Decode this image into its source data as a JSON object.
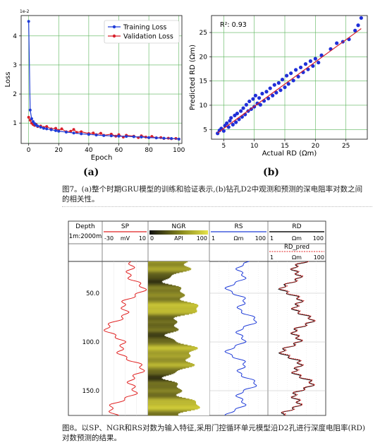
{
  "figure7": {
    "label_a": "(a)",
    "label_b": "(b)",
    "caption": "图7。(a)整个时期GRU模型的训练和验证表示,(b)钻孔D2中观测和预测的深电阻率对数之间的相关性。",
    "chart_data": [
      {
        "type": "line",
        "multiplier": "1e-2",
        "xlabel": "Epoch",
        "ylabel": "Loss",
        "xlim": [
          -5,
          102
        ],
        "ylim": [
          0.3,
          4.7
        ],
        "xticks": [
          0,
          20,
          40,
          60,
          80,
          100
        ],
        "yticks": [
          1,
          2,
          3,
          4
        ],
        "grid": true,
        "legend_position": "top-right",
        "series": [
          {
            "name": "Training Loss",
            "color": "#1f3cd8",
            "x": [
              0,
              1,
              2,
              3,
              4,
              5,
              6,
              8,
              10,
              12,
              15,
              18,
              20,
              25,
              30,
              35,
              40,
              45,
              50,
              55,
              60,
              65,
              70,
              75,
              80,
              85,
              90,
              95,
              100
            ],
            "y": [
              4.5,
              1.45,
              1.15,
              1.05,
              0.98,
              0.93,
              0.9,
              0.86,
              0.82,
              0.8,
              0.77,
              0.74,
              0.72,
              0.69,
              0.66,
              0.63,
              0.61,
              0.59,
              0.57,
              0.56,
              0.55,
              0.54,
              0.53,
              0.52,
              0.5,
              0.49,
              0.48,
              0.47,
              0.45
            ]
          },
          {
            "name": "Validation Loss",
            "color": "#d81f2a",
            "x": [
              0,
              1,
              2,
              3,
              4,
              5,
              6,
              8,
              10,
              12,
              15,
              18,
              20,
              22,
              25,
              28,
              30,
              32,
              35,
              40,
              43,
              45,
              48,
              50,
              55,
              58,
              60,
              63,
              65,
              70,
              73,
              75,
              78,
              80,
              82,
              85,
              88,
              90,
              93,
              95,
              98,
              100
            ],
            "y": [
              1.2,
              1.1,
              1.0,
              0.95,
              0.92,
              0.95,
              0.88,
              0.9,
              0.85,
              0.88,
              0.8,
              0.82,
              0.75,
              0.8,
              0.7,
              0.72,
              0.78,
              0.68,
              0.7,
              0.64,
              0.66,
              0.6,
              0.65,
              0.58,
              0.62,
              0.55,
              0.6,
              0.52,
              0.58,
              0.55,
              0.5,
              0.56,
              0.52,
              0.5,
              0.54,
              0.49,
              0.5,
              0.47,
              0.48,
              0.46,
              0.47,
              0.45
            ]
          }
        ]
      },
      {
        "type": "scatter",
        "annotation": "R²: 0.93",
        "xlabel": "Actual RD (Ωm)",
        "ylabel": "Predicted RD (Ωm)",
        "xlim": [
          3,
          28.5
        ],
        "ylim": [
          3,
          28.5
        ],
        "xticks": [
          5,
          10,
          15,
          20,
          25
        ],
        "yticks": [
          5,
          10,
          15,
          20,
          25
        ],
        "grid": true,
        "fit_line": {
          "color": "#d81f2a",
          "x": [
            4,
            27.5
          ],
          "y": [
            4.3,
            25.8
          ]
        },
        "points": [
          [
            4,
            4.2
          ],
          [
            4.3,
            4.8
          ],
          [
            4.6,
            5.2
          ],
          [
            5,
            4.7
          ],
          [
            5.2,
            5.8
          ],
          [
            5.5,
            6.3
          ],
          [
            5.8,
            5.5
          ],
          [
            6,
            6.8
          ],
          [
            6.2,
            7.4
          ],
          [
            6.5,
            6
          ],
          [
            6.8,
            7.9
          ],
          [
            7,
            6.5
          ],
          [
            7.2,
            8.3
          ],
          [
            7.5,
            7.1
          ],
          [
            7.8,
            8.8
          ],
          [
            8,
            7.6
          ],
          [
            8.2,
            9.4
          ],
          [
            8.5,
            8.1
          ],
          [
            8.7,
            10.1
          ],
          [
            9,
            8.8
          ],
          [
            9.2,
            10.8
          ],
          [
            9.5,
            9.2
          ],
          [
            9.8,
            11.3
          ],
          [
            10,
            9.7
          ],
          [
            10.2,
            12
          ],
          [
            10.5,
            10.4
          ],
          [
            10.8,
            11.5
          ],
          [
            11,
            10.1
          ],
          [
            11.3,
            12.4
          ],
          [
            11.6,
            10.9
          ],
          [
            12,
            12.8
          ],
          [
            12.3,
            11.4
          ],
          [
            12.6,
            13.5
          ],
          [
            13,
            12
          ],
          [
            13.3,
            14.2
          ],
          [
            13.6,
            12.6
          ],
          [
            14,
            14.6
          ],
          [
            14.3,
            13.1
          ],
          [
            14.6,
            15.3
          ],
          [
            15,
            13.7
          ],
          [
            15.3,
            16.1
          ],
          [
            15.6,
            14.4
          ],
          [
            16,
            16.6
          ],
          [
            16.4,
            15.1
          ],
          [
            16.8,
            17.3
          ],
          [
            17.2,
            15.9
          ],
          [
            17.6,
            17.8
          ],
          [
            18,
            16.8
          ],
          [
            18.4,
            18.5
          ],
          [
            18.8,
            17.4
          ],
          [
            19.2,
            19.1
          ],
          [
            19.6,
            18.1
          ],
          [
            20,
            19.6
          ],
          [
            20.5,
            18.8
          ],
          [
            21,
            20.3
          ],
          [
            22.5,
            21.6
          ],
          [
            23.5,
            22.8
          ],
          [
            24.5,
            23.1
          ],
          [
            25.5,
            23.6
          ],
          [
            26.5,
            25.4
          ],
          [
            27,
            26.5
          ],
          [
            27.5,
            28
          ]
        ]
      }
    ]
  },
  "figure8": {
    "tracks": [
      {
        "title": "Depth",
        "scale_left": "1m:2000m"
      },
      {
        "title": "SP",
        "min": "-30",
        "unit": "mV",
        "max": "10",
        "color": "#e02020"
      },
      {
        "title": "NGR",
        "min": "0",
        "unit": "API",
        "max": "100",
        "color": "#a5a02a"
      },
      {
        "title": "RS",
        "min": "1",
        "unit": "Ωm",
        "max": "100",
        "color": "#1f3cd8"
      },
      {
        "title": "RD",
        "min": "1",
        "unit": "Ωm",
        "max": "100",
        "color": "#111111"
      },
      {
        "title": "RD_pred",
        "min": "1",
        "unit": "Ωm",
        "max": "100",
        "color": "#e02020"
      }
    ],
    "depth_labels": [
      "50.0",
      "100.0",
      "150.0"
    ],
    "caption": "图8。以SP、NGR和RS对数为输入特征,采用门控循环单元模型沿D2孔进行深度电阻率(RD)对数预测的结果。"
  }
}
